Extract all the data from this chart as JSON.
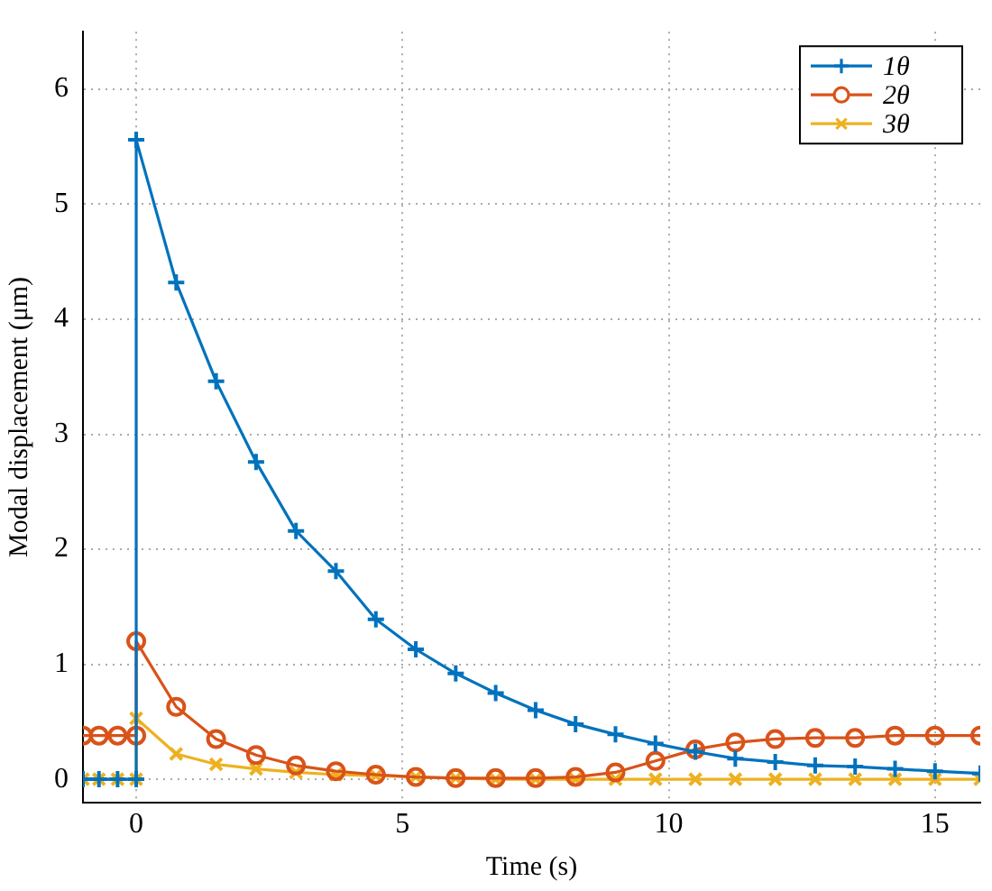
{
  "chart_data": {
    "type": "line",
    "xlabel": "Time (s)",
    "ylabel": "Modal displacement (μm)",
    "xlim": [
      -1,
      15.85
    ],
    "xticks": [
      0,
      5,
      10,
      15
    ],
    "ylim": [
      -0.2,
      6.5
    ],
    "yticks": [
      0,
      1,
      2,
      3,
      4,
      5,
      6
    ],
    "grid": true,
    "legend": "top right",
    "line_style": "solid",
    "series": [
      {
        "name": "1θ",
        "color": "#0072bd",
        "marker": "cross",
        "x": [
          -1,
          -0.7,
          -0.35,
          0,
          0,
          0.75,
          1.5,
          2.25,
          3,
          3.75,
          4.5,
          5.25,
          6,
          6.75,
          7.5,
          8.25,
          9,
          9.75,
          10.5,
          11.25,
          12,
          12.75,
          13.5,
          14.25,
          15,
          15.85
        ],
        "values": [
          0,
          0,
          0,
          0,
          5.56,
          4.32,
          3.46,
          2.76,
          2.16,
          1.81,
          1.39,
          1.13,
          0.92,
          0.75,
          0.6,
          0.48,
          0.39,
          0.31,
          0.24,
          0.18,
          0.15,
          0.12,
          0.11,
          0.09,
          0.07,
          0.05
        ]
      },
      {
        "name": "2θ",
        "color": "#d95319",
        "marker": "circle",
        "x": [
          -1,
          -0.7,
          -0.35,
          0,
          0,
          0.75,
          1.5,
          2.25,
          3,
          3.75,
          4.5,
          5.25,
          6,
          6.75,
          7.5,
          8.25,
          9,
          9.75,
          10.5,
          11.25,
          12,
          12.75,
          13.5,
          14.25,
          15,
          15.85
        ],
        "values": [
          0.38,
          0.38,
          0.38,
          0.38,
          1.2,
          0.63,
          0.35,
          0.21,
          0.12,
          0.07,
          0.04,
          0.02,
          0.01,
          0.01,
          0.01,
          0.02,
          0.06,
          0.16,
          0.26,
          0.32,
          0.35,
          0.36,
          0.36,
          0.38,
          0.38,
          0.38
        ]
      },
      {
        "name": "3θ",
        "color": "#edb120",
        "marker": "x",
        "x": [
          -1,
          -0.7,
          -0.35,
          0,
          0,
          0.75,
          1.5,
          2.25,
          3,
          3.75,
          4.5,
          5.25,
          6,
          6.75,
          7.5,
          8.25,
          9,
          9.75,
          10.5,
          11.25,
          12,
          12.75,
          13.5,
          14.25,
          15,
          15.85
        ],
        "values": [
          0,
          0,
          0,
          0,
          0.53,
          0.22,
          0.13,
          0.09,
          0.06,
          0.04,
          0.03,
          0.02,
          0.01,
          0,
          0,
          0,
          0,
          0,
          0,
          0,
          0,
          0,
          0,
          0,
          0,
          0
        ]
      }
    ]
  }
}
